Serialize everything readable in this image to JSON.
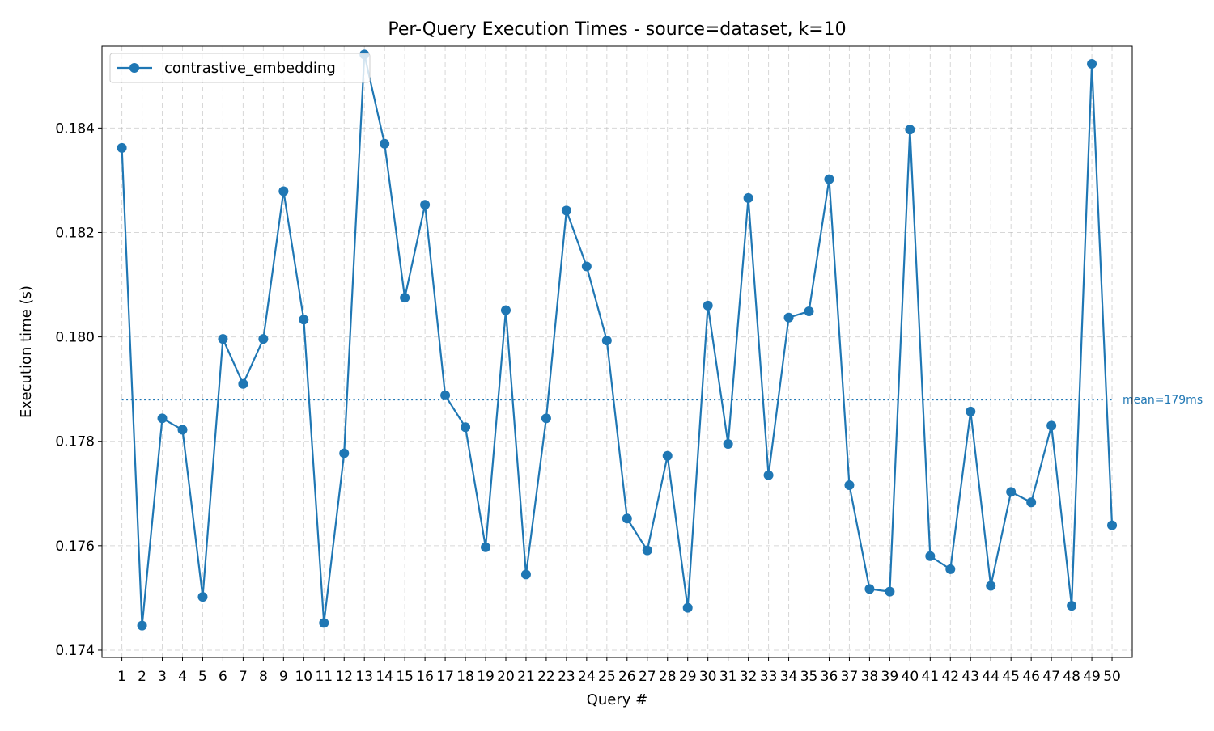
{
  "chart_data": {
    "type": "line",
    "title": "Per-Query Execution Times - source=dataset, k=10",
    "xlabel": "Query #",
    "ylabel": "Execution time (s)",
    "x": [
      1,
      2,
      3,
      4,
      5,
      6,
      7,
      8,
      9,
      10,
      11,
      12,
      13,
      14,
      15,
      16,
      17,
      18,
      19,
      20,
      21,
      22,
      23,
      24,
      25,
      26,
      27,
      28,
      29,
      30,
      31,
      32,
      33,
      34,
      35,
      36,
      37,
      38,
      39,
      40,
      41,
      42,
      43,
      44,
      45,
      46,
      47,
      48,
      49,
      50
    ],
    "x_tick_labels": [
      "1",
      "2",
      "3",
      "4",
      "5",
      "6",
      "7",
      "8",
      "9",
      "10",
      "11",
      "12",
      "13",
      "14",
      "15",
      "16",
      "17",
      "18",
      "19",
      "20",
      "21",
      "22",
      "23",
      "24",
      "25",
      "26",
      "27",
      "28",
      "29",
      "30",
      "31",
      "32",
      "33",
      "34",
      "35",
      "36",
      "37",
      "38",
      "39",
      "40",
      "41",
      "42",
      "43",
      "44",
      "45",
      "46",
      "47",
      "48",
      "49",
      "50"
    ],
    "y_ticks": [
      0.174,
      0.176,
      0.178,
      0.18,
      0.182,
      0.184
    ],
    "y_tick_labels": [
      "0.174",
      "0.176",
      "0.178",
      "0.180",
      "0.182",
      "0.184"
    ],
    "xlim": [
      0.015,
      51.0
    ],
    "ylim": [
      0.17386,
      0.18557
    ],
    "grid": true,
    "legend_position": "upper-left",
    "series": [
      {
        "name": "contrastive_embedding",
        "color": "#1f77b4",
        "marker": "circle",
        "values": [
          0.18362,
          0.17447,
          0.17844,
          0.17822,
          0.17502,
          0.17996,
          0.1791,
          0.17996,
          0.18279,
          0.18033,
          0.17452,
          0.17777,
          0.18541,
          0.1837,
          0.18075,
          0.18253,
          0.17888,
          0.17827,
          0.17597,
          0.18051,
          0.17545,
          0.17844,
          0.18242,
          0.18135,
          0.17993,
          0.17652,
          0.17591,
          0.17772,
          0.17481,
          0.1806,
          0.17795,
          0.18266,
          0.17735,
          0.18037,
          0.18049,
          0.18302,
          0.17716,
          0.17517,
          0.17512,
          0.18397,
          0.1758,
          0.17555,
          0.17857,
          0.17523,
          0.17703,
          0.17683,
          0.1783,
          0.17485,
          0.18523,
          0.17639
        ]
      }
    ],
    "mean_line": {
      "value": 0.1788,
      "label": "mean=179ms",
      "color": "#1f77b4",
      "style": "dotted"
    }
  }
}
